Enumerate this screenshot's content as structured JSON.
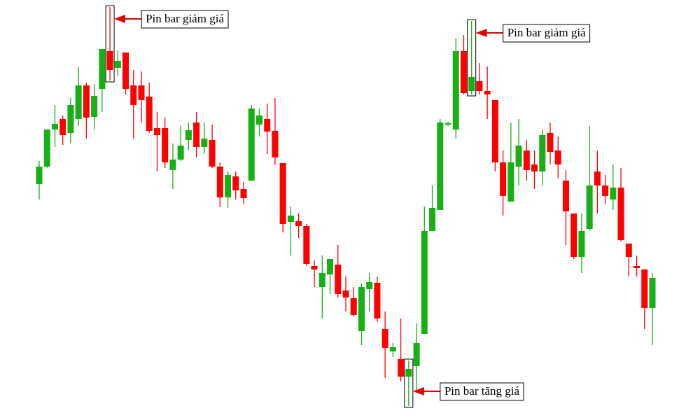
{
  "chart_data": {
    "type": "candlestick",
    "up_color": "#16b016",
    "down_color": "#ff0000",
    "ylim": [
      0,
      600
    ],
    "open": [
      337,
      362,
      415,
      430,
      410,
      430,
      478,
      433,
      473,
      527,
      503,
      525,
      478,
      478,
      462,
      417,
      417,
      357,
      372,
      400,
      425,
      390,
      400,
      362,
      318,
      348,
      330,
      342,
      422,
      430,
      413,
      367,
      283,
      284,
      277,
      220,
      190,
      208,
      222,
      185,
      174,
      127,
      187,
      196,
      130,
      98,
      87,
      62,
      77,
      123,
      270,
      300,
      422,
      415,
      527,
      470,
      484,
      470,
      457,
      368,
      312,
      362,
      385,
      365,
      355,
      410,
      385,
      342,
      295,
      233,
      273,
      355,
      335,
      315,
      332,
      252,
      220,
      215,
      160
    ],
    "high": [
      370,
      415,
      450,
      435,
      460,
      505,
      482,
      480,
      530,
      590,
      528,
      525,
      500,
      498,
      482,
      440,
      432,
      395,
      420,
      425,
      440,
      425,
      422,
      368,
      355,
      355,
      340,
      450,
      445,
      452,
      460,
      367,
      305,
      295,
      280,
      228,
      235,
      230,
      250,
      205,
      190,
      195,
      210,
      205,
      155,
      110,
      145,
      85,
      138,
      305,
      335,
      430,
      426,
      545,
      550,
      570,
      510,
      505,
      457,
      385,
      425,
      430,
      400,
      385,
      415,
      425,
      405,
      357,
      295,
      295,
      420,
      385,
      350,
      365,
      360,
      252,
      235,
      215,
      210
    ],
    "low": [
      315,
      360,
      390,
      393,
      395,
      420,
      402,
      415,
      440,
      485,
      492,
      465,
      402,
      425,
      410,
      355,
      360,
      330,
      370,
      385,
      375,
      380,
      360,
      304,
      303,
      315,
      308,
      342,
      405,
      380,
      365,
      268,
      235,
      260,
      220,
      190,
      145,
      180,
      175,
      155,
      148,
      107,
      155,
      140,
      60,
      90,
      55,
      20,
      40,
      123,
      270,
      300,
      420,
      402,
      465,
      465,
      465,
      430,
      355,
      292,
      312,
      335,
      342,
      330,
      335,
      365,
      345,
      250,
      230,
      210,
      270,
      295,
      308,
      300,
      255,
      205,
      205,
      130,
      107
    ],
    "close": [
      362,
      415,
      423,
      407,
      450,
      478,
      432,
      463,
      530,
      500,
      513,
      473,
      450,
      457,
      413,
      407,
      368,
      372,
      392,
      414,
      390,
      402,
      362,
      318,
      350,
      328,
      317,
      445,
      435,
      412,
      375,
      280,
      292,
      277,
      223,
      215,
      210,
      230,
      180,
      175,
      150,
      190,
      197,
      145,
      103,
      104,
      62,
      73,
      110,
      270,
      303,
      425,
      424,
      527,
      467,
      490,
      470,
      465,
      368,
      320,
      368,
      392,
      357,
      355,
      407,
      383,
      365,
      298,
      233,
      270,
      335,
      335,
      320,
      332,
      257,
      233,
      217,
      160,
      203
    ],
    "annotations": [
      {
        "text": "Pin bar giảm giá",
        "candle": 9,
        "side": "high"
      },
      {
        "text": "Pin bar giảm giá",
        "candle": 55,
        "side": "high"
      },
      {
        "text": "Pin bar tăng giá",
        "candle": 47,
        "side": "low"
      }
    ]
  }
}
